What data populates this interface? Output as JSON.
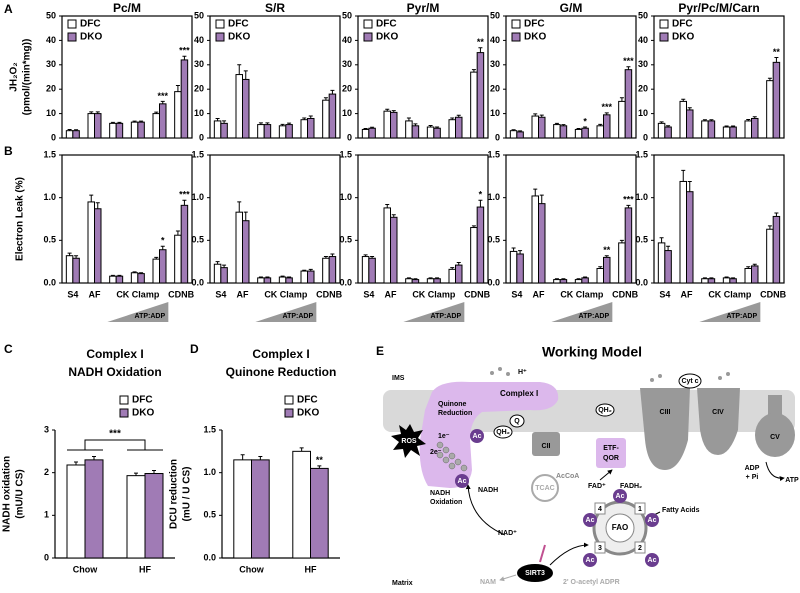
{
  "chart_data": [
    {
      "type": "bar",
      "panel": "A",
      "title": "Pc/M",
      "ylabel": [
        "JH₂O₂",
        "(pmol/(min*mg))"
      ],
      "categories": [
        null,
        null,
        null,
        null,
        null,
        null
      ],
      "ylim": [
        0,
        50
      ],
      "yticks": [
        0,
        10,
        20,
        30,
        40,
        50
      ],
      "legend": "upper left",
      "frame": "box",
      "series": [
        {
          "name": "DFC",
          "color": "#ffffff",
          "values": [
            3,
            10,
            6,
            6.5,
            10,
            19
          ],
          "errors": [
            0.5,
            0.7,
            0.4,
            0.4,
            0.6,
            2.5
          ]
        },
        {
          "name": "DKO",
          "color": "#a07bb5",
          "values": [
            3,
            10,
            6,
            6.5,
            14,
            32
          ],
          "errors": [
            0.4,
            0.7,
            0.4,
            0.4,
            1,
            1.5
          ],
          "stars": [
            null,
            null,
            null,
            null,
            "***",
            "***"
          ]
        }
      ]
    },
    {
      "type": "bar",
      "title": "S/R",
      "categories": [
        null,
        null,
        null,
        null,
        null,
        null
      ],
      "ylim": [
        0,
        50
      ],
      "yticks": [
        0,
        10,
        20,
        30,
        40,
        50
      ],
      "legend": "upper left",
      "frame": "box",
      "series": [
        {
          "name": "DFC",
          "color": "#ffffff",
          "values": [
            7,
            26,
            5.5,
            5,
            7.5,
            15.5
          ],
          "errors": [
            1,
            4,
            0.7,
            0.6,
            0.7,
            1
          ]
        },
        {
          "name": "DKO",
          "color": "#a07bb5",
          "values": [
            6,
            24,
            5.5,
            5.5,
            8,
            18
          ],
          "errors": [
            1,
            3.5,
            0.7,
            0.6,
            1,
            1.5
          ]
        }
      ]
    },
    {
      "type": "bar",
      "title": "Pyr/M",
      "categories": [
        null,
        null,
        null,
        null,
        null,
        null
      ],
      "ylim": [
        0,
        50
      ],
      "yticks": [
        0,
        10,
        20,
        30,
        40,
        50
      ],
      "legend": "upper left",
      "frame": "box",
      "series": [
        {
          "name": "DFC",
          "color": "#ffffff",
          "values": [
            3.5,
            11,
            7,
            4.5,
            7.5,
            27
          ],
          "errors": [
            0.4,
            0.8,
            1.2,
            0.6,
            0.7,
            1
          ]
        },
        {
          "name": "DKO",
          "color": "#a07bb5",
          "values": [
            4,
            10.5,
            5,
            4,
            8.5,
            35
          ],
          "errors": [
            0.4,
            0.7,
            0.8,
            0.5,
            0.8,
            2
          ],
          "stars": [
            null,
            null,
            null,
            null,
            null,
            "**"
          ]
        }
      ]
    },
    {
      "type": "bar",
      "title": "G/M",
      "categories": [
        null,
        null,
        null,
        null,
        null,
        null
      ],
      "ylim": [
        0,
        50
      ],
      "yticks": [
        0,
        10,
        20,
        30,
        40,
        50
      ],
      "legend": "upper left",
      "frame": "box",
      "series": [
        {
          "name": "DFC",
          "color": "#ffffff",
          "values": [
            3,
            9,
            5.5,
            3.5,
            5,
            15
          ],
          "errors": [
            0.4,
            0.9,
            0.5,
            0.4,
            0.6,
            1.5
          ]
        },
        {
          "name": "DKO",
          "color": "#a07bb5",
          "values": [
            2.5,
            8.5,
            5,
            4,
            9.5,
            28
          ],
          "errors": [
            0.4,
            0.9,
            0.5,
            0.5,
            0.8,
            1.2
          ],
          "stars": [
            null,
            null,
            null,
            "*",
            "***",
            "***"
          ]
        }
      ]
    },
    {
      "type": "bar",
      "title": "Pyr/Pc/M/Carn",
      "categories": [
        null,
        null,
        null,
        null,
        null,
        null
      ],
      "ylim": [
        0,
        50
      ],
      "yticks": [
        0,
        10,
        20,
        30,
        40,
        50
      ],
      "legend": "upper left",
      "frame": "box",
      "series": [
        {
          "name": "DFC",
          "color": "#ffffff",
          "values": [
            6,
            15,
            7,
            4.5,
            7,
            23.5
          ],
          "errors": [
            0.6,
            0.9,
            0.5,
            0.4,
            0.6,
            1
          ]
        },
        {
          "name": "DKO",
          "color": "#a07bb5",
          "values": [
            4.5,
            11.5,
            7,
            4.5,
            8,
            31
          ],
          "errors": [
            0.5,
            0.9,
            0.5,
            0.4,
            0.7,
            2
          ],
          "stars": [
            null,
            null,
            null,
            null,
            null,
            "**"
          ]
        }
      ]
    },
    {
      "type": "bar",
      "panel": "B",
      "ylabel": [
        "Electron Leak (%)"
      ],
      "categories": [
        "S4",
        "AF",
        null,
        "CK Clamp",
        null,
        "CDNB"
      ],
      "gradient_label": "ATP:ADP",
      "ylim": [
        0,
        1.5
      ],
      "yticks": [
        {
          "value": 0,
          "label": "0.0"
        },
        0.5,
        {
          "value": 1,
          "label": "1.0"
        },
        1.5
      ],
      "frame": "box",
      "series": [
        {
          "color": "#ffffff",
          "values": [
            0.32,
            0.95,
            0.08,
            0.12,
            0.28,
            0.56
          ],
          "errors": [
            0.03,
            0.08,
            0.01,
            0.01,
            0.02,
            0.05
          ]
        },
        {
          "color": "#a07bb5",
          "values": [
            0.29,
            0.87,
            0.08,
            0.11,
            0.39,
            0.91
          ],
          "errors": [
            0.03,
            0.07,
            0.01,
            0.01,
            0.04,
            0.06
          ],
          "stars": [
            null,
            null,
            null,
            null,
            "*",
            "***"
          ]
        }
      ]
    },
    {
      "type": "bar",
      "categories": [
        "S4",
        "AF",
        null,
        "CK Clamp",
        null,
        "CDNB"
      ],
      "gradient_label": "ATP:ADP",
      "ylim": [
        0,
        1.5
      ],
      "yticks": [
        {
          "value": 0,
          "label": "0.0"
        },
        0.5,
        {
          "value": 1,
          "label": "1.0"
        },
        1.5
      ],
      "frame": "box",
      "series": [
        {
          "color": "#ffffff",
          "values": [
            0.22,
            0.83,
            0.06,
            0.07,
            0.14,
            0.29
          ],
          "errors": [
            0.03,
            0.12,
            0.01,
            0.01,
            0.01,
            0.02
          ]
        },
        {
          "color": "#a07bb5",
          "values": [
            0.18,
            0.73,
            0.06,
            0.06,
            0.14,
            0.31
          ],
          "errors": [
            0.03,
            0.1,
            0.01,
            0.01,
            0.02,
            0.03
          ]
        }
      ]
    },
    {
      "type": "bar",
      "categories": [
        "S4",
        "AF",
        null,
        "CK Clamp",
        null,
        "CDNB"
      ],
      "gradient_label": "ATP:ADP",
      "ylim": [
        0,
        1.5
      ],
      "yticks": [
        {
          "value": 0,
          "label": "0.0"
        },
        0.5,
        {
          "value": 1,
          "label": "1.0"
        },
        1.5
      ],
      "frame": "box",
      "series": [
        {
          "color": "#ffffff",
          "values": [
            0.31,
            0.88,
            0.05,
            0.05,
            0.16,
            0.65
          ],
          "errors": [
            0.02,
            0.04,
            0.01,
            0.01,
            0.02,
            0.02
          ]
        },
        {
          "color": "#a07bb5",
          "values": [
            0.29,
            0.77,
            0.04,
            0.05,
            0.21,
            0.89
          ],
          "errors": [
            0.02,
            0.03,
            0.01,
            0.01,
            0.03,
            0.08
          ],
          "stars": [
            null,
            null,
            null,
            null,
            null,
            "*"
          ]
        }
      ]
    },
    {
      "type": "bar",
      "categories": [
        "S4",
        "AF",
        null,
        "CK Clamp",
        null,
        "CDNB"
      ],
      "gradient_label": "ATP:ADP",
      "ylim": [
        0,
        1.5
      ],
      "yticks": [
        {
          "value": 0,
          "label": "0.0"
        },
        0.5,
        {
          "value": 1,
          "label": "1.0"
        },
        1.5
      ],
      "frame": "box",
      "series": [
        {
          "color": "#ffffff",
          "values": [
            0.37,
            1.02,
            0.04,
            0.04,
            0.17,
            0.47
          ],
          "errors": [
            0.04,
            0.08,
            0.01,
            0.01,
            0.02,
            0.03
          ]
        },
        {
          "color": "#a07bb5",
          "values": [
            0.34,
            0.93,
            0.04,
            0.06,
            0.3,
            0.88
          ],
          "errors": [
            0.04,
            0.1,
            0.01,
            0.01,
            0.02,
            0.03
          ],
          "stars": [
            null,
            null,
            null,
            null,
            "**",
            "***"
          ]
        }
      ]
    },
    {
      "type": "bar",
      "categories": [
        "S4",
        "AF",
        null,
        "CK Clamp",
        null,
        "CDNB"
      ],
      "gradient_label": "ATP:ADP",
      "ylim": [
        0,
        1.5
      ],
      "yticks": [
        {
          "value": 0,
          "label": "0.0"
        },
        0.5,
        {
          "value": 1,
          "label": "1.0"
        },
        1.5
      ],
      "frame": "box",
      "series": [
        {
          "color": "#ffffff",
          "values": [
            0.47,
            1.19,
            0.05,
            0.06,
            0.17,
            0.63
          ],
          "errors": [
            0.06,
            0.13,
            0.01,
            0.01,
            0.02,
            0.04
          ]
        },
        {
          "color": "#a07bb5",
          "values": [
            0.38,
            1.07,
            0.05,
            0.05,
            0.2,
            0.78
          ],
          "errors": [
            0.05,
            0.12,
            0.01,
            0.01,
            0.02,
            0.04
          ]
        }
      ]
    },
    {
      "type": "bar",
      "panel": "C",
      "title": [
        "Complex I",
        "NADH Oxidation"
      ],
      "ylabel": [
        "NADH oxidation",
        "(mU/U CS)"
      ],
      "categories": [
        "Chow",
        "HF"
      ],
      "ylim": [
        0,
        3
      ],
      "yticks": [
        0,
        1,
        2,
        3
      ],
      "legend": "upper right",
      "frame": "axes",
      "significance": "***",
      "series": [
        {
          "name": "DFC",
          "color": "#ffffff",
          "values": [
            2.18,
            1.93
          ],
          "errors": [
            0.07,
            0.06
          ]
        },
        {
          "name": "DKO",
          "color": "#a07bb5",
          "values": [
            2.3,
            1.98
          ],
          "errors": [
            0.08,
            0.07
          ]
        }
      ]
    },
    {
      "type": "bar",
      "panel": "D",
      "title": [
        "Complex I",
        "Quinone Reduction"
      ],
      "ylabel": [
        "DCU reduction",
        "(mU / U CS)"
      ],
      "categories": [
        "Chow",
        "HF"
      ],
      "ylim": [
        0,
        1.5
      ],
      "yticks": [
        {
          "value": 0,
          "label": "0.0"
        },
        0.5,
        {
          "value": 1,
          "label": "1.0"
        },
        1.5
      ],
      "legend": "upper right",
      "frame": "axes",
      "series": [
        {
          "name": "DFC",
          "color": "#ffffff",
          "values": [
            1.15,
            1.25
          ],
          "errors": [
            0.06,
            0.04
          ]
        },
        {
          "name": "DKO",
          "color": "#a07bb5",
          "values": [
            1.15,
            1.05
          ],
          "errors": [
            0.04,
            0.03
          ],
          "stars": [
            null,
            "**"
          ]
        }
      ]
    }
  ],
  "diagram": {
    "panel": "E",
    "title": "Working Model",
    "ims": "IMS",
    "matrix": "Matrix",
    "h_plus": "H⁺",
    "complex_i": "Complex I",
    "quinone_reduction": [
      "Quinone",
      "Reduction"
    ],
    "cyt_c": "Cyt c",
    "q": "Q",
    "qh2": "QH₂",
    "cii": "CII",
    "ciii": "CIII",
    "civ": "CIV",
    "cv": "CV",
    "etf_qor": [
      "ETF-",
      "QOR"
    ],
    "adp_pi": [
      "ADP",
      "+ Pi"
    ],
    "atp": "ATP",
    "ros": "ROS",
    "one_e": "1e⁻",
    "two_e": "2e⁻",
    "ac": "Ac",
    "nadh": "NADH",
    "nadh_oxidation": [
      "NADH",
      "Oxidation"
    ],
    "tcac": "TCAC",
    "acetyl_coa": "AcCoA",
    "fad": "FAD⁺",
    "fadh2": "FADH₂",
    "fao": "FAO",
    "fao_steps": [
      1,
      2,
      3,
      4
    ],
    "fatty_acids": "Fatty Acids",
    "nad": "NAD⁺",
    "sirt3": "SIRT3",
    "nam": "NAM",
    "acetyl_adpr": "2' O-acetyl ADPR"
  }
}
